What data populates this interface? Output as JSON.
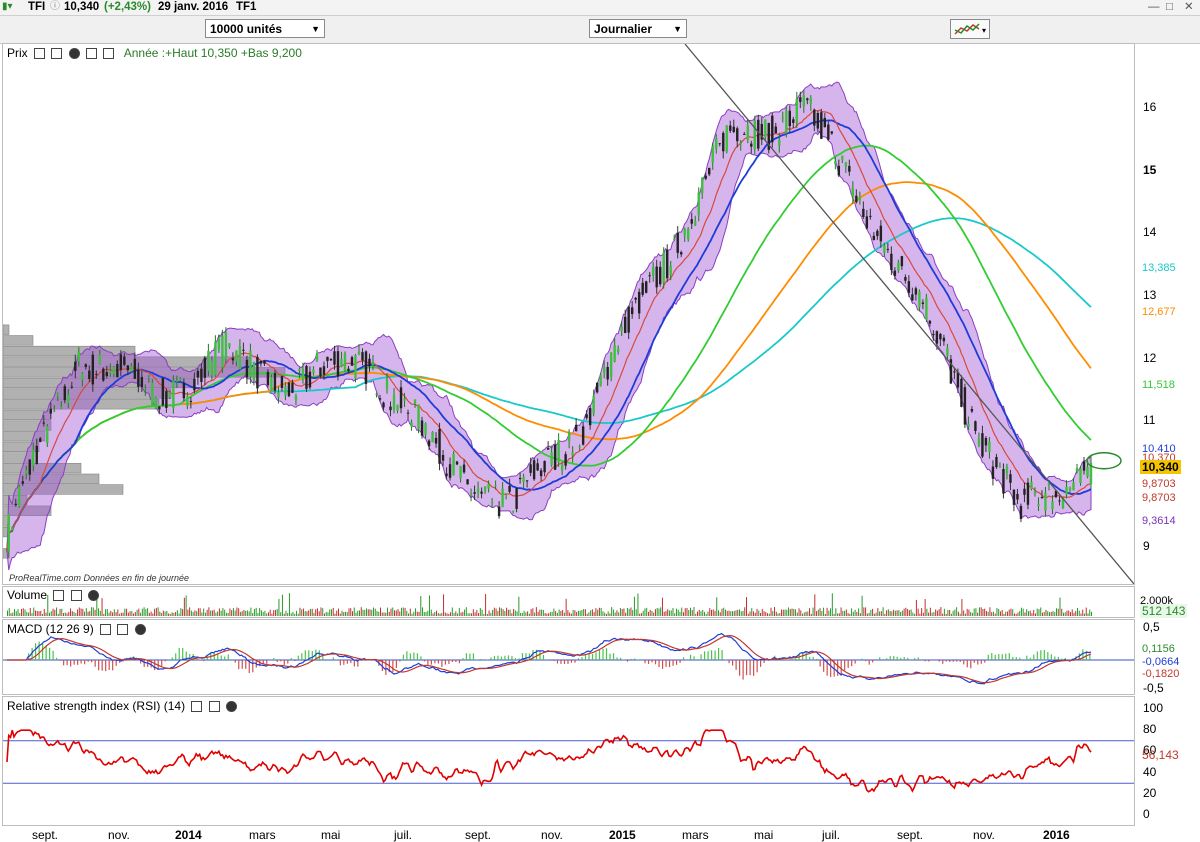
{
  "window": {
    "symbol": "TFI",
    "last_price": "10,340",
    "change": "(+2,43%)",
    "date": "29 janv. 2016",
    "name": "TF1"
  },
  "toolbar": {
    "quantity": "10000 unités",
    "period": "Journalier"
  },
  "price_pane": {
    "label": "Prix",
    "info": "Année :+Haut 10,350 +Bas 9,200",
    "watermark": "ProRealTime.com  Données en fin de journée",
    "y_ticks": [
      "16",
      "15",
      "14",
      "13",
      "12",
      "11",
      "10",
      "9"
    ],
    "tags": [
      {
        "text": "13,385",
        "color": "#19c9c9"
      },
      {
        "text": "12,677",
        "color": "#ff8c00"
      },
      {
        "text": "11,518",
        "color": "#33cc33"
      },
      {
        "text": "10,410",
        "color": "#1e3cd8"
      },
      {
        "text": "10,370",
        "color": "#c0392b"
      },
      {
        "text": "10,340",
        "color": "#000000"
      },
      {
        "text": "9,8703",
        "color": "#c0392b"
      },
      {
        "text": "9,8703",
        "color": "#c0392b"
      },
      {
        "text": "9,3614",
        "color": "#7a2fb5"
      }
    ]
  },
  "volume_pane": {
    "label": "Volume",
    "top_tick": "2.000k",
    "value": "512 143"
  },
  "macd_pane": {
    "label": "MACD (12 26 9)",
    "ticks": [
      "0,5",
      "-0,5"
    ],
    "values": [
      {
        "text": "0,1156",
        "color": "#2aa52a"
      },
      {
        "text": "-0,0664",
        "color": "#1e3cd8"
      },
      {
        "text": "-0,1820",
        "color": "#c0392b"
      }
    ]
  },
  "rsi_pane": {
    "label": "Relative strength index (RSI) (14)",
    "ticks": [
      "100",
      "80",
      "60",
      "40",
      "20",
      "0"
    ],
    "value": "56,143"
  },
  "x_axis": {
    "labels": [
      "sept.",
      "nov.",
      "2014",
      "mars",
      "mai",
      "juil.",
      "sept.",
      "nov.",
      "2015",
      "mars",
      "mai",
      "juil.",
      "sept.",
      "nov.",
      "2016"
    ],
    "bold": [
      false,
      false,
      true,
      false,
      false,
      false,
      false,
      false,
      true,
      false,
      false,
      false,
      false,
      false,
      true
    ]
  },
  "colors": {
    "candles_up": "#2a8a2a",
    "bollinger": "#a35bd4",
    "ma_red": "#d84a3a",
    "ma_blue": "#1e3cd8",
    "ma_green": "#33cc33",
    "ma_orange": "#ff8c00",
    "ma_cyan": "#19c9c9",
    "rsi": "#e00000"
  },
  "chart_data": {
    "type": "line",
    "x": [
      "2013-08",
      "2013-10",
      "2013-12",
      "2014-02",
      "2014-04",
      "2014-06",
      "2014-08",
      "2014-10",
      "2014-12",
      "2015-02",
      "2015-04",
      "2015-06",
      "2015-08",
      "2015-10",
      "2015-12",
      "2016-01"
    ],
    "series": [
      {
        "values": [
          9.2,
          12.1,
          11.4,
          12.0,
          11.6,
          12.0,
          10.4,
          9.6,
          11.1,
          13.4,
          15.5,
          16.0,
          14.2,
          12.0,
          9.5,
          10.34
        ]
      }
    ],
    "ylim": [
      8.5,
      16.8
    ],
    "rsi_levels": [
      30,
      70
    ],
    "grid": false
  }
}
